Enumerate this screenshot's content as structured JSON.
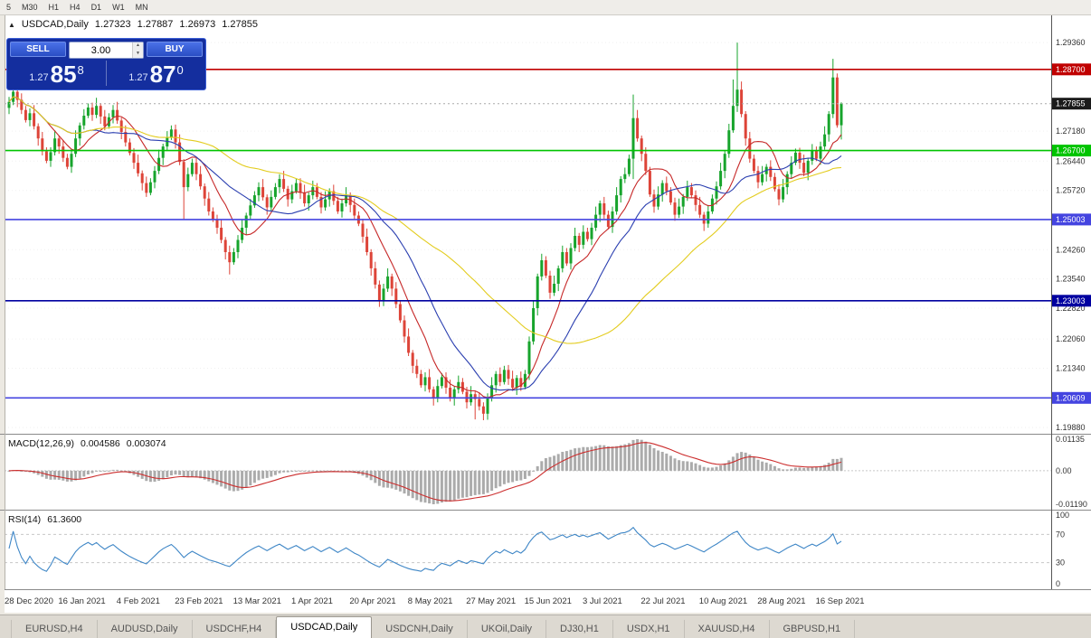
{
  "toolbar": {
    "timeframes": [
      "5",
      "M30",
      "H1",
      "H4",
      "D1",
      "W1",
      "MN"
    ]
  },
  "chart_header": {
    "symbol": "USDCAD,Daily",
    "open": "1.27323",
    "high": "1.27887",
    "low": "1.26973",
    "close": "1.27855"
  },
  "trade_panel": {
    "sell_label": "SELL",
    "buy_label": "BUY",
    "volume_value": "3.00",
    "sell_price": {
      "prefix": "1.27",
      "big": "85",
      "sup": "8"
    },
    "buy_price": {
      "prefix": "1.27",
      "big": "87",
      "sup": "0"
    }
  },
  "price_axis": {
    "plain_labels": [
      "1.29360",
      "1.27180",
      "1.26440",
      "1.25720",
      "1.24260",
      "1.23540",
      "1.22820",
      "1.22060",
      "1.21340",
      "1.19880"
    ],
    "current": "1.27855"
  },
  "hlines": [
    {
      "label": "1.28700",
      "color": "#C00000"
    },
    {
      "label": "1.26700",
      "color": "#00C400"
    },
    {
      "label": "1.25003",
      "color": "#4444E0"
    },
    {
      "label": "1.23003",
      "color": "#0000A0"
    },
    {
      "label": "1.20609",
      "color": "#4444E0"
    }
  ],
  "indicators": {
    "macd": {
      "title": "MACD(12,26,9)",
      "value_main": "0.004586",
      "value_signal": "0.003074",
      "axis_labels": [
        "0.01135",
        "0.00",
        "-0.01190"
      ]
    },
    "rsi": {
      "title": "RSI(14)",
      "value": "61.3600",
      "axis_labels": [
        "100",
        "70",
        "30",
        "0"
      ],
      "levels": [
        70,
        30
      ]
    }
  },
  "tabs": [
    {
      "label": "EURUSD,H4",
      "active": false
    },
    {
      "label": "AUDUSD,Daily",
      "active": false
    },
    {
      "label": "USDCHF,H4",
      "active": false
    },
    {
      "label": "USDCAD,Daily",
      "active": true
    },
    {
      "label": "USDCNH,Daily",
      "active": false
    },
    {
      "label": "UKOil,Daily",
      "active": false
    },
    {
      "label": "DJ30,H1",
      "active": false
    },
    {
      "label": "USDX,H1",
      "active": false
    },
    {
      "label": "XAUUSD,H4",
      "active": false
    },
    {
      "label": "GBPUSD,H1",
      "active": false
    }
  ],
  "colors": {
    "bull": "#17A42C",
    "bear": "#DD4438",
    "macd_hist": "#ABABAB",
    "macd_signal": "#CC2E2E",
    "rsi_line": "#3E86C6",
    "axis_text": "#333333",
    "current_badge_bg": "#1B1B1B",
    "grid": "#F0F0F0",
    "axis_line": "#555555"
  },
  "chart_data": {
    "type": "candlestick",
    "symbol": "USDCAD",
    "timeframe": "Daily",
    "y_range": [
      1.19726,
      1.3003
    ],
    "date_labels": [
      "28 Dec 2020",
      "16 Jan 2021",
      "4 Feb 2021",
      "23 Feb 2021",
      "13 Mar 2021",
      "1 Apr 2021",
      "20 Apr 2021",
      "8 May 2021",
      "27 May 2021",
      "15 Jun 2021",
      "3 Jul 2021",
      "22 Jul 2021",
      "10 Aug 2021",
      "28 Aug 2021",
      "16 Sep 2021"
    ],
    "date_label_step": 14,
    "first_open": 1.2775,
    "closes": [
      1.279,
      1.2815,
      1.2795,
      1.277,
      1.2745,
      1.2762,
      1.273,
      1.27,
      1.2668,
      1.2645,
      1.2666,
      1.27,
      1.268,
      1.2652,
      1.263,
      1.2662,
      1.27,
      1.2732,
      1.2756,
      1.2776,
      1.2758,
      1.278,
      1.2754,
      1.273,
      1.2752,
      1.277,
      1.2744,
      1.2716,
      1.269,
      1.2664,
      1.264,
      1.2614,
      1.259,
      1.2566,
      1.2592,
      1.262,
      1.2652,
      1.268,
      1.2702,
      1.2722,
      1.269,
      1.2642,
      1.258,
      1.2612,
      1.264,
      1.2612,
      1.2582,
      1.2552,
      1.252,
      1.25,
      1.248,
      1.245,
      1.242,
      1.2395,
      1.242,
      1.245,
      1.248,
      1.251,
      1.2535,
      1.256,
      1.258,
      1.2555,
      1.253,
      1.2556,
      1.258,
      1.26,
      1.2576,
      1.255,
      1.257,
      1.259,
      1.2566,
      1.254,
      1.256,
      1.258,
      1.2556,
      1.253,
      1.255,
      1.257,
      1.2546,
      1.252,
      1.254,
      1.256,
      1.2536,
      1.251,
      1.249,
      1.2458,
      1.242,
      1.238,
      1.234,
      1.2302,
      1.233,
      1.236,
      1.233,
      1.2292,
      1.2252,
      1.2212,
      1.2172,
      1.214,
      1.212,
      1.2092,
      1.2112,
      1.2082,
      1.206,
      1.209,
      1.2112,
      1.2086,
      1.206,
      1.2082,
      1.21,
      1.2076,
      1.205,
      1.207,
      1.2058,
      1.204,
      1.2022,
      1.206,
      1.2092,
      1.212,
      1.21,
      1.213,
      1.2108,
      1.2086,
      1.211,
      1.2088,
      1.212,
      1.22,
      1.2282,
      1.236,
      1.24,
      1.2362,
      1.232,
      1.2342,
      1.238,
      1.242,
      1.2392,
      1.243,
      1.246,
      1.2438,
      1.247,
      1.2452,
      1.248,
      1.2512,
      1.254,
      1.2512,
      1.2482,
      1.252,
      1.256,
      1.26,
      1.2612,
      1.265,
      1.275,
      1.27,
      1.2662,
      1.262,
      1.2562,
      1.2532,
      1.2562,
      1.259,
      1.257,
      1.2542,
      1.2512,
      1.2532,
      1.2556,
      1.258,
      1.256,
      1.2536,
      1.2512,
      1.249,
      1.252,
      1.2552,
      1.2582,
      1.262,
      1.2662,
      1.272,
      1.278,
      1.282,
      1.276,
      1.27,
      1.265,
      1.262,
      1.2592,
      1.2612,
      1.263,
      1.2605,
      1.2575,
      1.255,
      1.258,
      1.2612,
      1.264,
      1.2665,
      1.264,
      1.2615,
      1.2645,
      1.267,
      1.265,
      1.268,
      1.271,
      1.276,
      1.285,
      1.27323,
      1.27855
    ],
    "wick_cycle_high": [
      0.0012,
      0.002,
      0.0007,
      0.0016,
      0.001
    ],
    "wick_cycle_low": [
      0.0015,
      0.0008,
      0.0018,
      0.001,
      0.0006
    ],
    "wick_overrides": {
      "42": {
        "l": 1.25
      },
      "53": {
        "l": 1.2365
      },
      "89": {
        "l": 1.2285
      },
      "112": {
        "l": 1.2008
      },
      "114": {
        "l": 1.2006
      },
      "150": {
        "h": 1.2808,
        "l": 1.26
      },
      "174": {
        "h": 1.2845
      },
      "175": {
        "h": 1.2936
      },
      "198": {
        "h": 1.2896
      },
      "200": {
        "h": 1.27887,
        "l": 1.26973
      }
    },
    "moving_averages": [
      {
        "name": "fast",
        "period": 10,
        "color": "#C62828"
      },
      {
        "name": "mid",
        "period": 21,
        "color": "#2B3FB0"
      },
      {
        "name": "slow",
        "period": 50,
        "color": "#E3CC1E"
      }
    ],
    "macd": {
      "fast": 12,
      "slow": 26,
      "signal": 9,
      "current_main": 0.004586,
      "current_signal": 0.003074
    },
    "rsi": {
      "period": 14,
      "current": 61.36,
      "levels": [
        70,
        30
      ]
    }
  }
}
